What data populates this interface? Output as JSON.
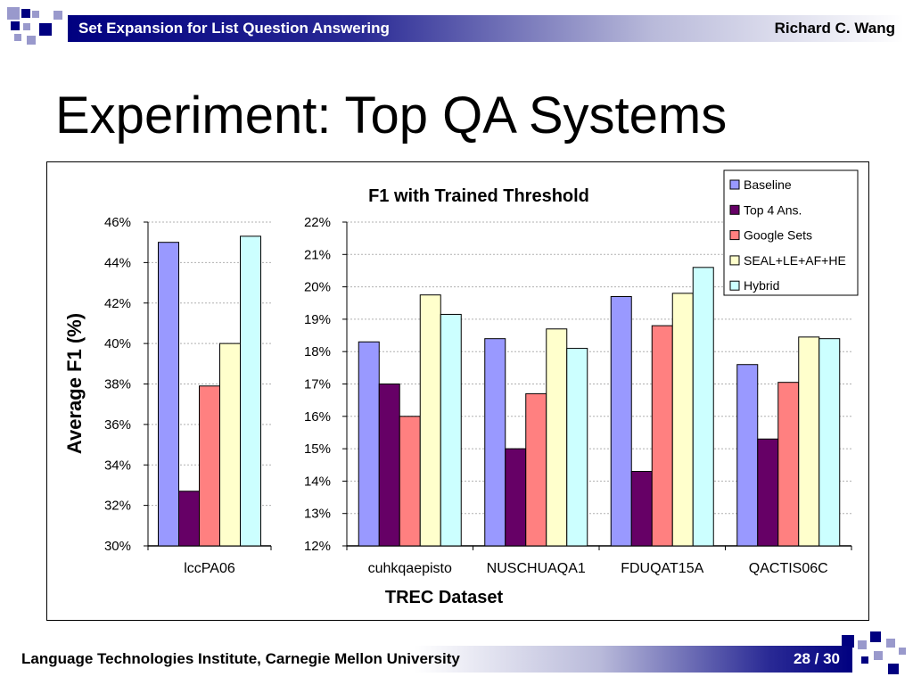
{
  "header": {
    "left_title": "Set Expansion for List Question Answering",
    "author": "Richard C. Wang"
  },
  "slide": {
    "title": "Experiment: Top QA Systems"
  },
  "footer": {
    "institution": "Language Technologies Institute, Carnegie Mellon University",
    "page": "28 / 30"
  },
  "colors": {
    "navy": "#000080",
    "slate": "#9999cc"
  },
  "chart_data": {
    "type": "bar",
    "title": "F1 with Trained Threshold",
    "ylabel": "Average F1 (%)",
    "xlabel": "TREC Dataset",
    "legend_position": "top-right",
    "grid": true,
    "series_names": [
      "Baseline",
      "Top 4 Ans.",
      "Google Sets",
      "SEAL+LE+AF+HE",
      "Hybrid"
    ],
    "series_colors": [
      "#9999ff",
      "#660066",
      "#ff8080",
      "#ffffcc",
      "#ccffff"
    ],
    "panels": [
      {
        "ylim": [
          30,
          46
        ],
        "yticks": [
          "30%",
          "32%",
          "34%",
          "36%",
          "38%",
          "40%",
          "42%",
          "44%",
          "46%"
        ],
        "categories": [
          "lccPA06"
        ],
        "series": [
          {
            "name": "Baseline",
            "values": [
              45.0
            ]
          },
          {
            "name": "Top 4 Ans.",
            "values": [
              32.7
            ]
          },
          {
            "name": "Google Sets",
            "values": [
              37.9
            ]
          },
          {
            "name": "SEAL+LE+AF+HE",
            "values": [
              40.0
            ]
          },
          {
            "name": "Hybrid",
            "values": [
              45.3
            ]
          }
        ]
      },
      {
        "ylim": [
          12,
          22
        ],
        "yticks": [
          "12%",
          "13%",
          "14%",
          "15%",
          "16%",
          "17%",
          "18%",
          "19%",
          "20%",
          "21%",
          "22%"
        ],
        "categories": [
          "cuhkqaepisto",
          "NUSCHUAQA1",
          "FDUQAT15A",
          "QACTIS06C"
        ],
        "series": [
          {
            "name": "Baseline",
            "values": [
              18.3,
              18.4,
              19.7,
              17.6
            ]
          },
          {
            "name": "Top 4 Ans.",
            "values": [
              17.0,
              15.0,
              14.3,
              15.3
            ]
          },
          {
            "name": "Google Sets",
            "values": [
              16.0,
              16.7,
              18.8,
              17.05
            ]
          },
          {
            "name": "SEAL+LE+AF+HE",
            "values": [
              19.75,
              18.7,
              19.8,
              18.45
            ]
          },
          {
            "name": "Hybrid",
            "values": [
              19.15,
              18.1,
              20.6,
              18.4
            ]
          }
        ]
      }
    ]
  }
}
